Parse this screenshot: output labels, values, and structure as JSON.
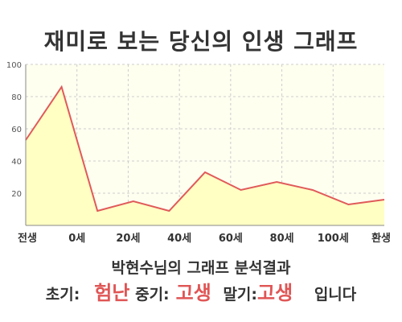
{
  "title": "재미로 보는 당신의 인생 그래프",
  "subtitle": "박현수님의 그래프 분석결과",
  "summary": {
    "early_label": "초기:",
    "early_result": "험난",
    "mid_label": "중기:",
    "mid_result": "고생",
    "late_label": "말기:",
    "late_result": "고생",
    "ending": "입니다"
  },
  "colors": {
    "line": "#e05a5a",
    "fill": "#ffffc4",
    "plot_bg": "#fffff0",
    "grid": "#cccccc",
    "result_text": "#e05555"
  },
  "chart_data": {
    "type": "area",
    "title": "",
    "xlabel": "",
    "ylabel": "",
    "ylim": [
      0,
      100
    ],
    "yticks": [
      20,
      40,
      60,
      80,
      100
    ],
    "grid": true,
    "x_tick_labels": [
      "전생",
      "0세",
      "20세",
      "40세",
      "60세",
      "80세",
      "100세",
      "환생"
    ],
    "series": [
      {
        "values": [
          53,
          86,
          9,
          15,
          9,
          33,
          22,
          27,
          22,
          13,
          16
        ]
      }
    ]
  }
}
